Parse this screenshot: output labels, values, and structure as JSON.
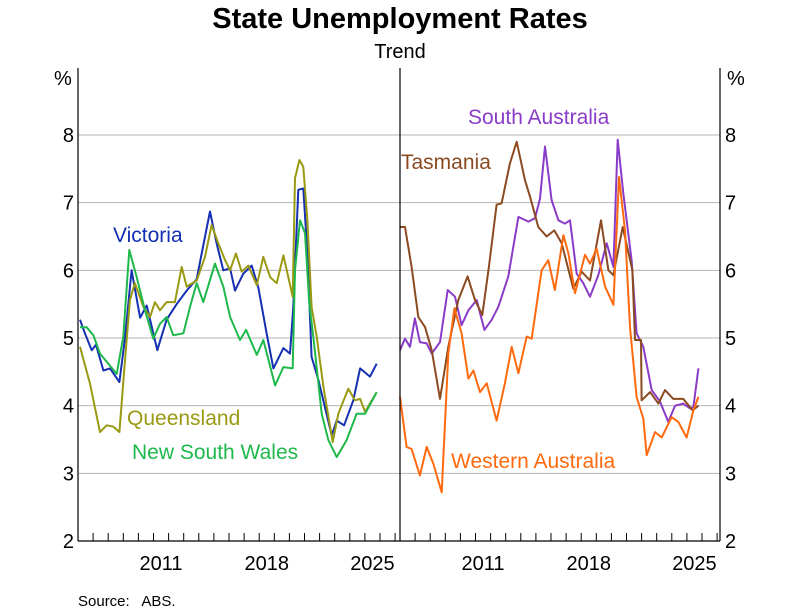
{
  "chart_data": [
    {
      "type": "line",
      "title": "State Unemployment Rates",
      "subtitle": "Trend",
      "ylabel": "%",
      "ylim": [
        2,
        8.5
      ],
      "xlim": [
        2006,
        2027.25
      ],
      "yticks": [
        "2",
        "3",
        "4",
        "5",
        "6",
        "7",
        "8"
      ],
      "xticks": [
        "2011",
        "2018",
        "2025"
      ],
      "grid": true,
      "series": [
        {
          "name": "Victoria",
          "color": "#1530b0",
          "points": [
            [
              2006.13,
              5.27
            ],
            [
              2006.46,
              5.07
            ],
            [
              2006.91,
              4.82
            ],
            [
              2007.19,
              4.9
            ],
            [
              2007.68,
              4.52
            ],
            [
              2008.12,
              4.55
            ],
            [
              2008.74,
              4.35
            ],
            [
              2009.11,
              5.0
            ],
            [
              2009.55,
              6.0
            ],
            [
              2010.11,
              5.3
            ],
            [
              2010.55,
              5.48
            ],
            [
              2011.25,
              4.82
            ],
            [
              2011.87,
              5.27
            ],
            [
              2012.53,
              5.5
            ],
            [
              2013.2,
              5.7
            ],
            [
              2013.86,
              5.87
            ],
            [
              2014.19,
              6.25
            ],
            [
              2014.74,
              6.87
            ],
            [
              2015.18,
              6.4
            ],
            [
              2015.62,
              6.0
            ],
            [
              2016.07,
              6.03
            ],
            [
              2016.4,
              5.7
            ],
            [
              2016.95,
              5.95
            ],
            [
              2017.5,
              6.07
            ],
            [
              2017.94,
              5.75
            ],
            [
              2018.49,
              5.07
            ],
            [
              2018.94,
              4.55
            ],
            [
              2019.6,
              4.85
            ],
            [
              2020.04,
              4.77
            ],
            [
              2020.26,
              5.46
            ],
            [
              2020.59,
              7.19
            ],
            [
              2020.92,
              7.21
            ],
            [
              2021.19,
              6.25
            ],
            [
              2021.47,
              4.72
            ],
            [
              2021.92,
              4.38
            ],
            [
              2022.8,
              3.56
            ],
            [
              2023.13,
              3.78
            ],
            [
              2023.62,
              3.71
            ],
            [
              2024.23,
              4.08
            ],
            [
              2024.68,
              4.55
            ],
            [
              2025.34,
              4.43
            ],
            [
              2025.78,
              4.62
            ]
          ]
        },
        {
          "name": "Queensland",
          "color": "#9a9a12",
          "points": [
            [
              2006.13,
              4.87
            ],
            [
              2006.79,
              4.33
            ],
            [
              2007.46,
              3.61
            ],
            [
              2007.9,
              3.71
            ],
            [
              2008.34,
              3.69
            ],
            [
              2008.74,
              3.61
            ],
            [
              2009.11,
              4.67
            ],
            [
              2009.44,
              5.56
            ],
            [
              2009.77,
              5.81
            ],
            [
              2010.33,
              5.46
            ],
            [
              2010.77,
              5.31
            ],
            [
              2011.1,
              5.53
            ],
            [
              2011.43,
              5.41
            ],
            [
              2011.87,
              5.53
            ],
            [
              2012.42,
              5.53
            ],
            [
              2012.87,
              6.05
            ],
            [
              2013.2,
              5.76
            ],
            [
              2013.86,
              5.85
            ],
            [
              2014.41,
              6.2
            ],
            [
              2014.85,
              6.67
            ],
            [
              2015.29,
              6.4
            ],
            [
              2015.74,
              6.15
            ],
            [
              2016.07,
              6.0
            ],
            [
              2016.46,
              6.25
            ],
            [
              2016.84,
              5.98
            ],
            [
              2017.28,
              6.07
            ],
            [
              2017.84,
              5.78
            ],
            [
              2018.27,
              6.2
            ],
            [
              2018.72,
              5.9
            ],
            [
              2019.16,
              5.81
            ],
            [
              2019.6,
              6.22
            ],
            [
              2020.22,
              5.61
            ],
            [
              2020.37,
              7.36
            ],
            [
              2020.66,
              7.63
            ],
            [
              2020.92,
              7.53
            ],
            [
              2021.19,
              6.74
            ],
            [
              2021.47,
              5.46
            ],
            [
              2021.81,
              5.02
            ],
            [
              2022.25,
              4.28
            ],
            [
              2022.87,
              3.46
            ],
            [
              2023.24,
              3.88
            ],
            [
              2023.9,
              4.25
            ],
            [
              2024.34,
              4.08
            ],
            [
              2024.68,
              4.1
            ],
            [
              2025.01,
              3.91
            ],
            [
              2025.78,
              4.2
            ]
          ]
        },
        {
          "name": "New South Wales",
          "color": "#1fb84c",
          "points": [
            [
              2006.13,
              5.16
            ],
            [
              2006.57,
              5.16
            ],
            [
              2007.02,
              5.04
            ],
            [
              2007.46,
              4.77
            ],
            [
              2007.9,
              4.65
            ],
            [
              2008.56,
              4.47
            ],
            [
              2009.0,
              5.02
            ],
            [
              2009.4,
              6.3
            ],
            [
              2009.89,
              5.9
            ],
            [
              2010.44,
              5.41
            ],
            [
              2010.99,
              4.99
            ],
            [
              2011.43,
              5.21
            ],
            [
              2011.87,
              5.31
            ],
            [
              2012.31,
              5.04
            ],
            [
              2012.98,
              5.07
            ],
            [
              2013.42,
              5.46
            ],
            [
              2013.86,
              5.81
            ],
            [
              2014.3,
              5.53
            ],
            [
              2015.07,
              6.1
            ],
            [
              2015.62,
              5.76
            ],
            [
              2016.07,
              5.31
            ],
            [
              2016.73,
              4.97
            ],
            [
              2017.13,
              5.12
            ],
            [
              2017.84,
              4.75
            ],
            [
              2018.27,
              4.97
            ],
            [
              2019.05,
              4.3
            ],
            [
              2019.6,
              4.57
            ],
            [
              2020.22,
              4.55
            ],
            [
              2020.37,
              6.0
            ],
            [
              2020.7,
              6.74
            ],
            [
              2021.03,
              6.55
            ],
            [
              2021.32,
              5.51
            ],
            [
              2021.58,
              5.02
            ],
            [
              2022.14,
              3.88
            ],
            [
              2022.58,
              3.49
            ],
            [
              2023.13,
              3.24
            ],
            [
              2023.79,
              3.49
            ],
            [
              2024.45,
              3.88
            ],
            [
              2025.01,
              3.88
            ],
            [
              2025.78,
              4.2
            ]
          ]
        },
        {
          "name": "South Australia",
          "color": "#8a3cc8",
          "points": [
            [
              2006.0,
              4.82
            ],
            [
              2006.33,
              4.99
            ],
            [
              2006.66,
              4.87
            ],
            [
              2006.99,
              5.29
            ],
            [
              2007.32,
              4.94
            ],
            [
              2007.77,
              4.92
            ],
            [
              2008.1,
              4.77
            ],
            [
              2008.65,
              4.94
            ],
            [
              2009.16,
              5.71
            ],
            [
              2009.64,
              5.61
            ],
            [
              2010.08,
              5.19
            ],
            [
              2010.53,
              5.41
            ],
            [
              2011.08,
              5.56
            ],
            [
              2011.59,
              5.12
            ],
            [
              2012.07,
              5.27
            ],
            [
              2012.51,
              5.46
            ],
            [
              2013.17,
              5.91
            ],
            [
              2013.84,
              6.79
            ],
            [
              2014.5,
              6.72
            ],
            [
              2014.94,
              6.77
            ],
            [
              2015.27,
              7.06
            ],
            [
              2015.6,
              7.83
            ],
            [
              2016.04,
              7.04
            ],
            [
              2016.49,
              6.74
            ],
            [
              2016.93,
              6.69
            ],
            [
              2017.26,
              6.74
            ],
            [
              2017.7,
              5.95
            ],
            [
              2018.14,
              5.81
            ],
            [
              2018.58,
              5.61
            ],
            [
              2019.13,
              5.93
            ],
            [
              2019.69,
              6.4
            ],
            [
              2020.13,
              6.05
            ],
            [
              2020.42,
              7.93
            ],
            [
              2020.79,
              7.14
            ],
            [
              2021.34,
              6.15
            ],
            [
              2021.67,
              5.07
            ],
            [
              2022.11,
              4.87
            ],
            [
              2022.67,
              4.23
            ],
            [
              2023.22,
              4.06
            ],
            [
              2023.77,
              3.76
            ],
            [
              2024.21,
              4.0
            ],
            [
              2024.76,
              4.03
            ],
            [
              2025.21,
              3.96
            ],
            [
              2025.43,
              3.98
            ],
            [
              2025.76,
              4.55
            ]
          ]
        },
        {
          "name": "Tasmania",
          "color": "#8b4a20",
          "points": [
            [
              2006.0,
              6.64
            ],
            [
              2006.33,
              6.64
            ],
            [
              2006.77,
              6.05
            ],
            [
              2007.21,
              5.31
            ],
            [
              2007.66,
              5.16
            ],
            [
              2008.1,
              4.82
            ],
            [
              2008.65,
              4.1
            ],
            [
              2009.2,
              4.87
            ],
            [
              2009.86,
              5.56
            ],
            [
              2010.48,
              5.91
            ],
            [
              2010.97,
              5.56
            ],
            [
              2011.45,
              5.34
            ],
            [
              2011.89,
              6.05
            ],
            [
              2012.4,
              6.97
            ],
            [
              2012.73,
              6.99
            ],
            [
              2013.28,
              7.58
            ],
            [
              2013.73,
              7.9
            ],
            [
              2014.28,
              7.33
            ],
            [
              2014.61,
              7.09
            ],
            [
              2015.16,
              6.64
            ],
            [
              2015.71,
              6.5
            ],
            [
              2016.22,
              6.59
            ],
            [
              2016.71,
              6.4
            ],
            [
              2017.48,
              5.73
            ],
            [
              2018.03,
              5.98
            ],
            [
              2018.58,
              5.85
            ],
            [
              2019.31,
              6.74
            ],
            [
              2019.8,
              6.0
            ],
            [
              2020.13,
              5.93
            ],
            [
              2020.75,
              6.64
            ],
            [
              2021.39,
              6.0
            ],
            [
              2021.56,
              4.97
            ],
            [
              2021.96,
              4.97
            ],
            [
              2022.0,
              4.08
            ],
            [
              2022.56,
              4.2
            ],
            [
              2023.11,
              4.03
            ],
            [
              2023.55,
              4.23
            ],
            [
              2024.1,
              4.1
            ],
            [
              2024.76,
              4.1
            ],
            [
              2025.38,
              3.93
            ],
            [
              2025.76,
              4.0
            ]
          ]
        },
        {
          "name": "Western Australia",
          "color": "#ff6a0e",
          "points": [
            [
              2006.0,
              4.13
            ],
            [
              2006.44,
              3.39
            ],
            [
              2006.77,
              3.36
            ],
            [
              2007.32,
              2.97
            ],
            [
              2007.77,
              3.39
            ],
            [
              2008.21,
              3.14
            ],
            [
              2008.76,
              2.72
            ],
            [
              2009.2,
              4.77
            ],
            [
              2009.6,
              5.44
            ],
            [
              2010.08,
              5.07
            ],
            [
              2010.53,
              4.4
            ],
            [
              2010.86,
              4.52
            ],
            [
              2011.3,
              4.2
            ],
            [
              2011.74,
              4.33
            ],
            [
              2012.4,
              3.78
            ],
            [
              2012.95,
              4.33
            ],
            [
              2013.4,
              4.87
            ],
            [
              2013.84,
              4.48
            ],
            [
              2014.39,
              5.02
            ],
            [
              2014.72,
              4.99
            ],
            [
              2015.38,
              6.0
            ],
            [
              2015.82,
              6.15
            ],
            [
              2016.26,
              5.71
            ],
            [
              2016.82,
              6.52
            ],
            [
              2017.15,
              6.25
            ],
            [
              2017.59,
              5.66
            ],
            [
              2018.25,
              6.23
            ],
            [
              2018.58,
              6.1
            ],
            [
              2019.02,
              6.32
            ],
            [
              2019.58,
              5.76
            ],
            [
              2020.13,
              5.49
            ],
            [
              2020.5,
              7.38
            ],
            [
              2020.9,
              6.59
            ],
            [
              2021.23,
              5.16
            ],
            [
              2021.67,
              4.13
            ],
            [
              2022.11,
              3.81
            ],
            [
              2022.34,
              3.27
            ],
            [
              2022.89,
              3.61
            ],
            [
              2023.33,
              3.53
            ],
            [
              2023.99,
              3.83
            ],
            [
              2024.43,
              3.76
            ],
            [
              2024.98,
              3.53
            ],
            [
              2025.43,
              3.93
            ],
            [
              2025.76,
              4.13
            ]
          ]
        }
      ],
      "panels": [
        {
          "series": [
            "Victoria",
            "Queensland",
            "New South Wales"
          ]
        },
        {
          "series": [
            "South Australia",
            "Tasmania",
            "Western Australia"
          ]
        }
      ],
      "source": "Source:   ABS."
    }
  ]
}
